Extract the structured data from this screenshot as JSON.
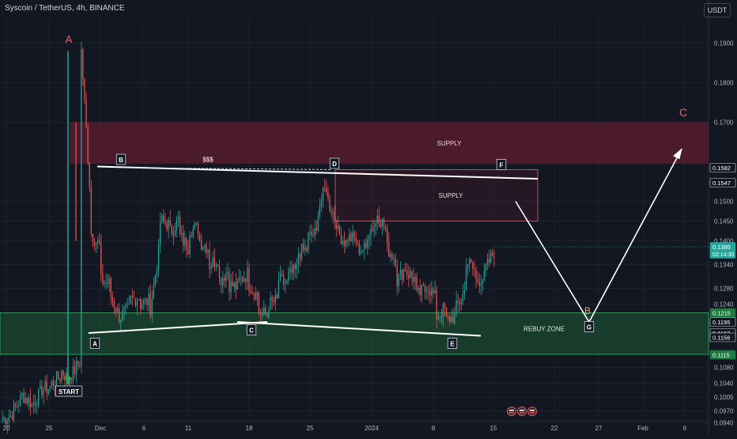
{
  "header": {
    "title": "Syscoin / TetherUS, 4h, BINANCE",
    "currency": "USDT"
  },
  "colors": {
    "background": "#131722",
    "grid": "#1e222d",
    "bull": "#26a69a",
    "bear": "#ef5350",
    "supply_zone": "#7a1f35",
    "rebuy_zone": "#1e6b3a",
    "projection_a": "#f06262",
    "projection_b": "#f2a07b",
    "current_price": "#26a69a"
  },
  "chart_data": {
    "type": "candlestick",
    "title": "Syscoin / TetherUS, 4h, BINANCE",
    "ylim": [
      0.0945,
      0.1965
    ],
    "y_ticks": [
      "0.1900",
      "0.1800",
      "0.1700",
      "0.1582",
      "0.1547",
      "0.1500",
      "0.1450",
      "0.1400",
      "0.1385",
      "0.1340",
      "0.1280",
      "0.1240",
      "0.1215",
      "0.1195",
      "0.1167",
      "0.1156",
      "0.1115",
      "0.1080",
      "0.1040",
      "0.1005",
      "0.0970",
      "0.0940"
    ],
    "x_ticks": [
      "20",
      "25",
      "Dec",
      "6",
      "11",
      "18",
      "25",
      "2024",
      "8",
      "15",
      "22",
      "27",
      "Feb",
      "6"
    ],
    "price_badges": [
      {
        "label": "0.1582",
        "style": "outline"
      },
      {
        "label": "0.1547",
        "style": "outline"
      },
      {
        "label": "0.1385",
        "sub": "02:14:30",
        "style": "current"
      },
      {
        "label": "0.1215",
        "style": "green"
      },
      {
        "label": "0.1195",
        "style": "outline"
      },
      {
        "label": "0.1167",
        "style": "outline"
      },
      {
        "label": "0.1156",
        "style": "outline"
      },
      {
        "label": "0.1115",
        "style": "green"
      }
    ],
    "zones": [
      {
        "label": "SUPPLY",
        "kind": "supply",
        "y_top": 0.17,
        "y_bottom": 0.1595
      },
      {
        "label": "SUPPLY",
        "kind": "supply_outline",
        "y_top": 0.158,
        "y_bottom": 0.145
      },
      {
        "label": "REBUY ZONE",
        "kind": "rebuy",
        "y_top": 0.1218,
        "y_bottom": 0.1113
      }
    ],
    "points": [
      {
        "label": "A",
        "kind": "box"
      },
      {
        "label": "B",
        "kind": "box"
      },
      {
        "label": "C",
        "kind": "box"
      },
      {
        "label": "D",
        "kind": "box"
      },
      {
        "label": "E",
        "kind": "box"
      },
      {
        "label": "F",
        "kind": "box"
      },
      {
        "label": "G",
        "kind": "box"
      },
      {
        "label": "START",
        "kind": "box"
      },
      {
        "label": "A",
        "kind": "text"
      },
      {
        "label": "B",
        "kind": "text"
      },
      {
        "label": "C",
        "kind": "text"
      }
    ],
    "annotations": [
      "$$$"
    ],
    "ohlc_anchors": [
      [
        0.0945,
        0.0948
      ],
      [
        0.096,
        0.0965
      ],
      [
        0.1005,
        0.101
      ],
      [
        0.099,
        0.0985
      ],
      [
        0.102,
        0.1025
      ],
      [
        0.103,
        0.104
      ],
      [
        0.106,
        0.107
      ],
      [
        0.1045,
        0.106
      ],
      [
        0.11,
        0.188
      ],
      [
        0.148,
        0.142
      ],
      [
        0.138,
        0.13
      ],
      [
        0.129,
        0.126
      ],
      [
        0.12,
        0.121
      ],
      [
        0.123,
        0.125
      ],
      [
        0.126,
        0.124
      ],
      [
        0.125,
        0.123
      ],
      [
        0.14,
        0.145
      ],
      [
        0.144,
        0.142
      ],
      [
        0.146,
        0.141
      ],
      [
        0.138,
        0.143
      ],
      [
        0.143,
        0.14
      ],
      [
        0.138,
        0.134
      ],
      [
        0.136,
        0.13
      ],
      [
        0.133,
        0.129
      ],
      [
        0.128,
        0.13
      ],
      [
        0.132,
        0.129
      ],
      [
        0.126,
        0.122
      ],
      [
        0.121,
        0.124
      ],
      [
        0.125,
        0.13
      ],
      [
        0.129,
        0.131
      ],
      [
        0.133,
        0.137
      ],
      [
        0.138,
        0.141
      ],
      [
        0.142,
        0.148
      ],
      [
        0.155,
        0.15
      ],
      [
        0.144,
        0.142
      ],
      [
        0.139,
        0.141
      ],
      [
        0.14,
        0.138
      ],
      [
        0.138,
        0.142
      ],
      [
        0.145,
        0.147
      ],
      [
        0.142,
        0.138
      ],
      [
        0.135,
        0.13
      ],
      [
        0.134,
        0.132
      ],
      [
        0.13,
        0.126
      ],
      [
        0.128,
        0.129
      ],
      [
        0.125,
        0.121
      ],
      [
        0.123,
        0.12
      ],
      [
        0.121,
        0.123
      ],
      [
        0.128,
        0.135
      ],
      [
        0.132,
        0.13
      ],
      [
        0.131,
        0.133
      ],
      [
        0.138,
        0.139
      ]
    ]
  }
}
